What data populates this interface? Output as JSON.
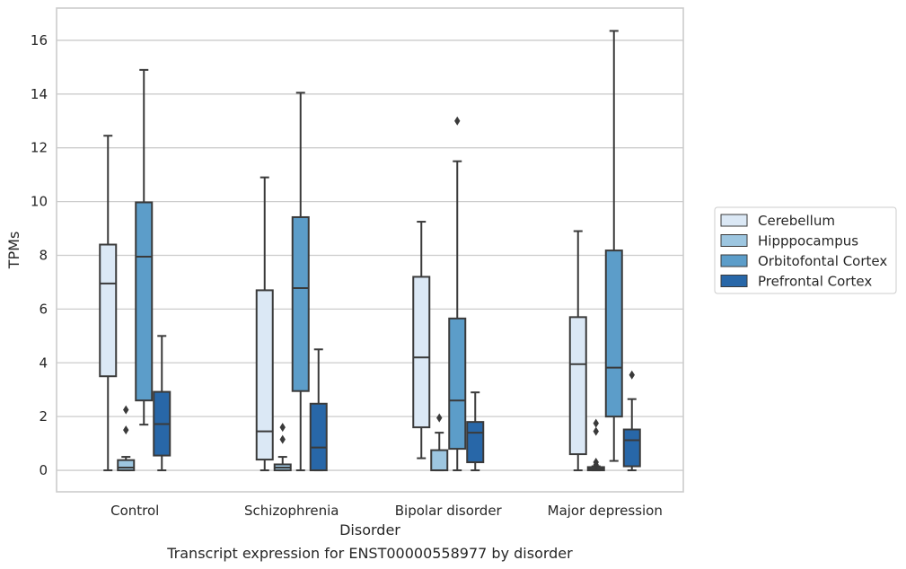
{
  "chart_data": {
    "type": "box",
    "caption": "Transcript expression for ENST00000558977 by disorder",
    "xlabel": "Disorder",
    "ylabel": "TPMs",
    "ylim": [
      -0.8,
      17.2
    ],
    "yticks": [
      0,
      2,
      4,
      6,
      8,
      10,
      12,
      14,
      16
    ],
    "grid": true,
    "legend_position": "right",
    "categories": [
      "Control",
      "Schizophrenia",
      "Bipolar disorder",
      "Major depression"
    ],
    "series": [
      {
        "name": "Cerebellum",
        "color": "#dbe8f5",
        "boxes": [
          {
            "whislo": 0,
            "q1": 3.5,
            "med": 6.95,
            "q3": 8.4,
            "whishi": 12.45,
            "fliers": []
          },
          {
            "whislo": 0,
            "q1": 0.4,
            "med": 1.45,
            "q3": 6.7,
            "whishi": 10.9,
            "fliers": []
          },
          {
            "whislo": 0.45,
            "q1": 1.6,
            "med": 4.2,
            "q3": 7.2,
            "whishi": 9.25,
            "fliers": []
          },
          {
            "whislo": 0,
            "q1": 0.6,
            "med": 3.95,
            "q3": 5.7,
            "whishi": 8.9,
            "fliers": []
          }
        ]
      },
      {
        "name": "Hipppocampus",
        "color": "#9dc6e0",
        "boxes": [
          {
            "whislo": 0,
            "q1": 0.0,
            "med": 0.1,
            "q3": 0.38,
            "whishi": 0.5,
            "fliers": [
              1.5,
              2.25
            ]
          },
          {
            "whislo": 0,
            "q1": 0.0,
            "med": 0.1,
            "q3": 0.22,
            "whishi": 0.5,
            "fliers": [
              1.15,
              1.6
            ]
          },
          {
            "whislo": 0,
            "q1": 0.0,
            "med": 0.0,
            "q3": 0.75,
            "whishi": 1.4,
            "fliers": [
              1.95
            ]
          },
          {
            "whislo": 0,
            "q1": 0.0,
            "med": 0.05,
            "q3": 0.12,
            "whishi": 0.15,
            "fliers": [
              0.2,
              0.3,
              1.45,
              1.75
            ]
          }
        ]
      },
      {
        "name": "Orbitofontal Cortex",
        "color": "#5c9dc9",
        "boxes": [
          {
            "whislo": 1.7,
            "q1": 2.6,
            "med": 7.95,
            "q3": 9.97,
            "whishi": 14.9,
            "fliers": []
          },
          {
            "whislo": 0,
            "q1": 2.95,
            "med": 6.78,
            "q3": 9.42,
            "whishi": 14.05,
            "fliers": []
          },
          {
            "whislo": 0,
            "q1": 0.8,
            "med": 2.6,
            "q3": 5.65,
            "whishi": 11.5,
            "fliers": [
              13
            ]
          },
          {
            "whislo": 0.35,
            "q1": 2.0,
            "med": 3.82,
            "q3": 8.18,
            "whishi": 16.35,
            "fliers": []
          }
        ]
      },
      {
        "name": "Prefrontal Cortex",
        "color": "#2867a8",
        "boxes": [
          {
            "whislo": 0,
            "q1": 0.55,
            "med": 1.72,
            "q3": 2.92,
            "whishi": 5.0,
            "fliers": []
          },
          {
            "whislo": 0,
            "q1": 0.0,
            "med": 0.85,
            "q3": 2.48,
            "whishi": 4.5,
            "fliers": []
          },
          {
            "whislo": 0,
            "q1": 0.3,
            "med": 1.4,
            "q3": 1.8,
            "whishi": 2.9,
            "fliers": []
          },
          {
            "whislo": 0,
            "q1": 0.15,
            "med": 1.12,
            "q3": 1.52,
            "whishi": 2.65,
            "fliers": [
              3.55
            ]
          }
        ]
      }
    ]
  }
}
